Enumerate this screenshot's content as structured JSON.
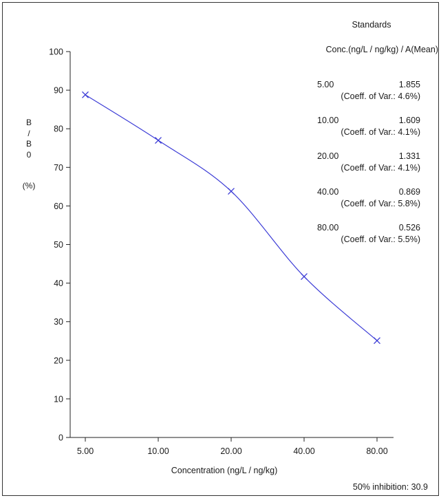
{
  "chart_data": {
    "type": "line",
    "title": "",
    "xlabel": "Concentration (ng/L / ng/kg)",
    "ylabel_lines": [
      "B",
      "/",
      "B",
      "0",
      "(%)"
    ],
    "ylim": [
      0,
      100
    ],
    "yticks": [
      "0",
      "10",
      "20",
      "30",
      "40",
      "50",
      "60",
      "70",
      "80",
      "90",
      "100"
    ],
    "categories": [
      "5.00",
      "10.00",
      "20.00",
      "40.00",
      "80.00"
    ],
    "x_scale": "log",
    "series": [
      {
        "values": [
          88.8,
          77.0,
          63.8,
          41.7,
          25.1
        ],
        "color": "#3b3bd6",
        "marker": "x",
        "smooth": true
      }
    ],
    "legend": {
      "title": "Standards",
      "header": "Conc.(ng/L / ng/kg) / A(Mean)",
      "entries": [
        {
          "conc": "5.00",
          "absorbance": "1.855",
          "cv": "(Coeff. of Var.: 4.6%)"
        },
        {
          "conc": "10.00",
          "absorbance": "1.609",
          "cv": "(Coeff. of Var.: 4.1%)"
        },
        {
          "conc": "20.00",
          "absorbance": "1.331",
          "cv": "(Coeff. of Var.: 4.1%)"
        },
        {
          "conc": "40.00",
          "absorbance": "0.869",
          "cv": "(Coeff. of Var.: 5.8%)"
        },
        {
          "conc": "80.00",
          "absorbance": "0.526",
          "cv": "(Coeff. of Var.: 5.5%)"
        }
      ]
    },
    "footer": "50% inhibition: 30.9",
    "grid": false
  }
}
